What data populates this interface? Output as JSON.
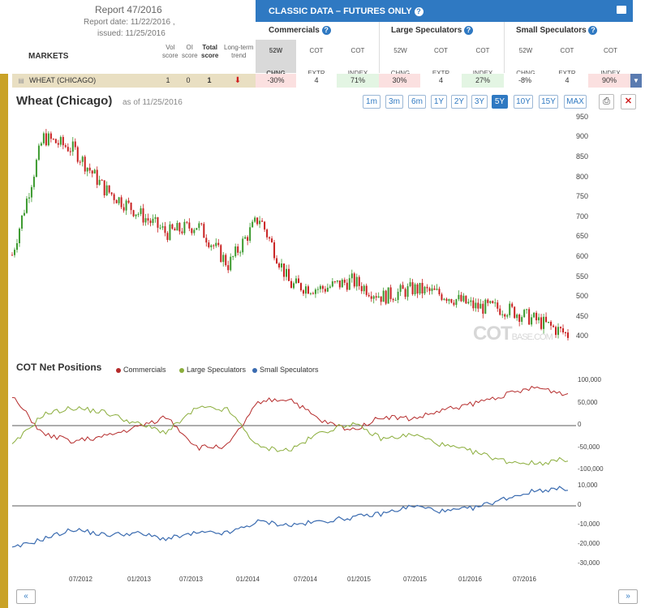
{
  "report": {
    "title": "Report 47/2016",
    "report_date": "Report date: 11/22/2016 ,",
    "issued": "issued: 11/25/2016"
  },
  "header": {
    "markets": "MARKETS",
    "vol_score": [
      "Vol",
      "score"
    ],
    "oi_score": [
      "OI",
      "score"
    ],
    "total_score": [
      "Total",
      "score"
    ],
    "long_term": [
      "Long-term",
      "trend"
    ],
    "classic": "CLASSIC DATA – FUTURES ONLY",
    "groups": [
      "Commercials",
      "Large Speculators",
      "Small Speculators"
    ],
    "cols": [
      [
        "52W",
        "CHNG"
      ],
      [
        "COT",
        "EXTR"
      ],
      [
        "COT",
        "INDEX"
      ]
    ]
  },
  "row": {
    "market": "WHEAT (CHICAGO)",
    "vol": "1",
    "oi": "0",
    "total": "1",
    "values": [
      "-30%",
      "4",
      "71%",
      "30%",
      "4",
      "27%",
      "-8%",
      "4",
      "90%"
    ]
  },
  "chart": {
    "title": "Wheat (Chicago)",
    "as_of": "as of 11/25/2016",
    "ranges": [
      "1m",
      "3m",
      "6m",
      "1Y",
      "2Y",
      "3Y",
      "5Y",
      "10Y",
      "15Y",
      "MAX"
    ],
    "active_range": "5Y",
    "watermark": "COT",
    "watermark_suffix": "BASE.COM",
    "price_ticks": [
      "950",
      "900",
      "850",
      "800",
      "750",
      "700",
      "650",
      "600",
      "550",
      "500",
      "450",
      "400"
    ],
    "cot_title": "COT Net Positions",
    "legend": [
      "Commercials",
      "Large Speculators",
      "Small Speculators"
    ],
    "net_ticks": [
      "100,000",
      "50,000",
      "0",
      "-50,000",
      "-100,000"
    ],
    "small_ticks": [
      "10,000",
      "0",
      "-10,000",
      "-20,000",
      "-30,000"
    ],
    "x_labels": [
      "07/2012",
      "01/2013",
      "07/2013",
      "01/2014",
      "07/2014",
      "01/2015",
      "07/2015",
      "01/2016",
      "07/2016"
    ],
    "nav_prev": "«",
    "nav_next": "»"
  },
  "colors": {
    "classic_blue": "#2f79c2",
    "commercials": "#b52b2b",
    "large_spec": "#8aad3b",
    "small_spec": "#3a6bb0",
    "up": "#3c9a2f",
    "down": "#c82020",
    "gold": "#c9a227"
  },
  "chart_data": [
    {
      "type": "candlestick",
      "title": "Wheat (Chicago)",
      "x": [
        "2012-04",
        "2012-07",
        "2012-10",
        "2013-01",
        "2013-04",
        "2013-07",
        "2013-10",
        "2014-01",
        "2014-04",
        "2014-07",
        "2014-10",
        "2015-01",
        "2015-04",
        "2015-07",
        "2015-10",
        "2016-01",
        "2016-04",
        "2016-07",
        "2016-11"
      ],
      "close": [
        605,
        900,
        870,
        770,
        715,
        660,
        680,
        580,
        700,
        530,
        520,
        540,
        500,
        520,
        505,
        475,
        470,
        440,
        405
      ],
      "ylim": [
        370,
        960
      ]
    },
    {
      "type": "line",
      "title": "COT Net Positions",
      "x": [
        "2012-04",
        "2012-07",
        "2012-10",
        "2013-01",
        "2013-04",
        "2013-07",
        "2013-10",
        "2014-01",
        "2014-04",
        "2014-07",
        "2014-10",
        "2015-01",
        "2015-04",
        "2015-07",
        "2015-10",
        "2016-01",
        "2016-04",
        "2016-07",
        "2016-11"
      ],
      "series": [
        {
          "name": "Commercials",
          "values": [
            65000,
            -20000,
            -35000,
            -25000,
            -5000,
            20000,
            -50000,
            -45000,
            55000,
            60000,
            10000,
            -10000,
            20000,
            15000,
            35000,
            50000,
            70000,
            85000,
            70000
          ]
        },
        {
          "name": "Large Speculators",
          "values": [
            -45000,
            25000,
            40000,
            30000,
            5000,
            -15000,
            40000,
            35000,
            -50000,
            -55000,
            -15000,
            5000,
            -30000,
            -20000,
            -45000,
            -60000,
            -80000,
            -85000,
            -75000
          ]
        },
        {
          "name": "Small Speculators",
          "values": [
            -22000,
            -17000,
            -12000,
            -15000,
            -14000,
            -17000,
            -14000,
            -14000,
            -8000,
            -10000,
            -8000,
            -6000,
            -4000,
            0,
            -3000,
            -1000,
            4000,
            8000,
            9000
          ]
        }
      ],
      "ylim": [
        -120000,
        110000
      ]
    }
  ]
}
